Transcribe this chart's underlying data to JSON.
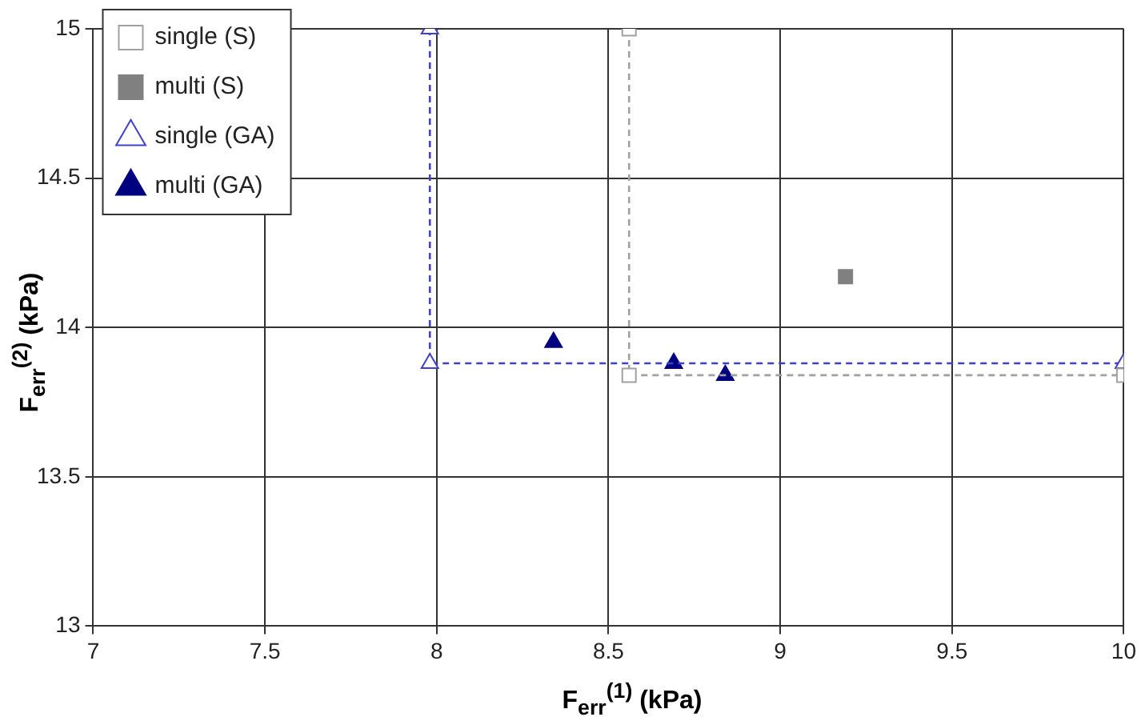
{
  "chart_data": {
    "type": "scatter",
    "xlabel": "F$_{err}$$^{(1)}$ (kPa)",
    "ylabel": "F$_{err}$$^{(2)}$ (kPa)",
    "xlim": [
      7,
      10
    ],
    "xticks": [
      7,
      7.5,
      8,
      8.5,
      9,
      9.5,
      10
    ],
    "ylim": [
      13,
      15
    ],
    "yticks": [
      13,
      13.5,
      14,
      14.5,
      15
    ],
    "grid": true,
    "legend": "top left",
    "series": [
      {
        "name": "single (S)",
        "type": "line",
        "color": "#a0a0a0",
        "marker": "square",
        "line_style": "dashed",
        "x": [
          8.56,
          8.56,
          10
        ],
        "values": [
          15,
          13.84,
          13.84
        ]
      },
      {
        "name": "multi (S)",
        "type": "scatter",
        "color": "#808080",
        "marker": "square",
        "x": [
          9.19
        ],
        "values": [
          14.17
        ]
      },
      {
        "name": "single (GA)",
        "type": "line",
        "color": "#4040c8",
        "marker": "triangle",
        "line_style": "dashed",
        "x": [
          7.98,
          7.98,
          10
        ],
        "values": [
          15,
          13.88,
          13.88
        ]
      },
      {
        "name": "multi (GA)",
        "type": "scatter",
        "color": "#000080",
        "marker": "triangle",
        "x": [
          8.34,
          8.69,
          8.84
        ],
        "values": [
          13.95,
          13.88,
          13.84
        ]
      }
    ]
  }
}
